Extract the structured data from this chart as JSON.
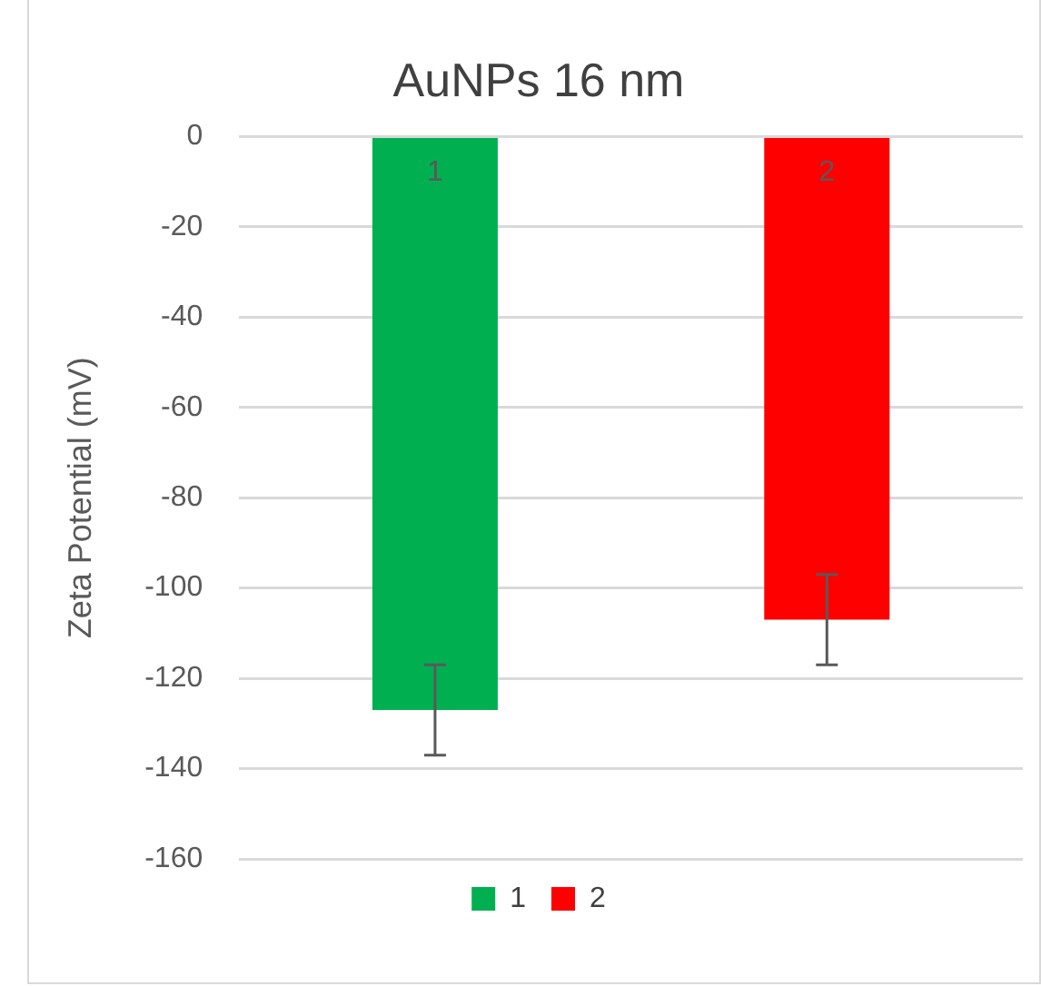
{
  "chart_data": {
    "type": "bar",
    "title": "AuNPs 16 nm",
    "ylabel": "Zeta Potential (mV)",
    "categories": [
      "1",
      "2"
    ],
    "series": [
      {
        "name": "1",
        "color": "#00b050",
        "values": [
          -127,
          null
        ],
        "errors": [
          10,
          null
        ]
      },
      {
        "name": "2",
        "color": "#ff0000",
        "values": [
          null,
          -107
        ],
        "errors": [
          null,
          10
        ]
      }
    ],
    "ylim": [
      -160,
      0
    ],
    "yticks": [
      0,
      -20,
      -40,
      -60,
      -80,
      -100,
      -120,
      -140,
      -160
    ],
    "grid": "y",
    "legend": "bottom"
  }
}
